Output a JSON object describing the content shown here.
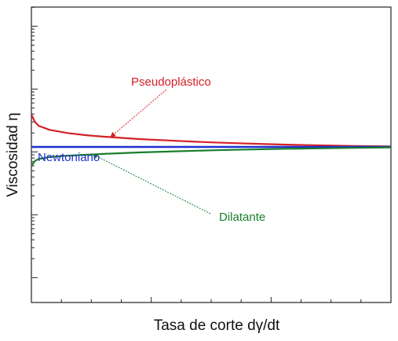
{
  "chart_data": {
    "type": "line",
    "title": "",
    "xlabel": "Tasa de corte dγ/dt",
    "ylabel": "Viscosidad η",
    "y_scale": "log",
    "x_tick_labels": "none",
    "y_tick_labels": "none",
    "grid": false,
    "legend": "none",
    "series": [
      {
        "name": "Pseudoplástico",
        "color": "#d42027",
        "x": [
          0.0,
          0.01,
          0.02,
          0.05,
          0.1,
          0.15,
          0.2,
          0.3,
          0.4,
          0.5,
          0.6,
          0.7,
          0.8,
          0.9,
          1.0
        ],
        "y": [
          3.9,
          3.0,
          2.6,
          2.25,
          2.0,
          1.85,
          1.75,
          1.6,
          1.5,
          1.42,
          1.36,
          1.31,
          1.27,
          1.24,
          1.22
        ]
      },
      {
        "name": "Newtoniano",
        "color": "#1f2fd1",
        "x": [
          0.0,
          1.0
        ],
        "y": [
          1.2,
          1.2
        ]
      },
      {
        "name": "Dilatante",
        "color": "#1a7f2a",
        "x": [
          0.0,
          0.01,
          0.02,
          0.05,
          0.1,
          0.15,
          0.2,
          0.3,
          0.4,
          0.5,
          0.6,
          0.7,
          0.8,
          0.9,
          1.0
        ],
        "y": [
          0.6,
          0.72,
          0.77,
          0.83,
          0.87,
          0.9,
          0.93,
          0.98,
          1.02,
          1.06,
          1.09,
          1.12,
          1.14,
          1.16,
          1.18
        ]
      }
    ],
    "annotations": [
      {
        "text": "Pseudoplástico",
        "color": "#d42027",
        "points_to_x": 0.22,
        "points_to_y": 1.72
      },
      {
        "text": "Newtoniano",
        "color": "#1f2fd1"
      },
      {
        "text": "Dilatante",
        "color": "#1a7f2a",
        "points_to_x": 0.17,
        "points_to_y": 0.92
      }
    ]
  }
}
